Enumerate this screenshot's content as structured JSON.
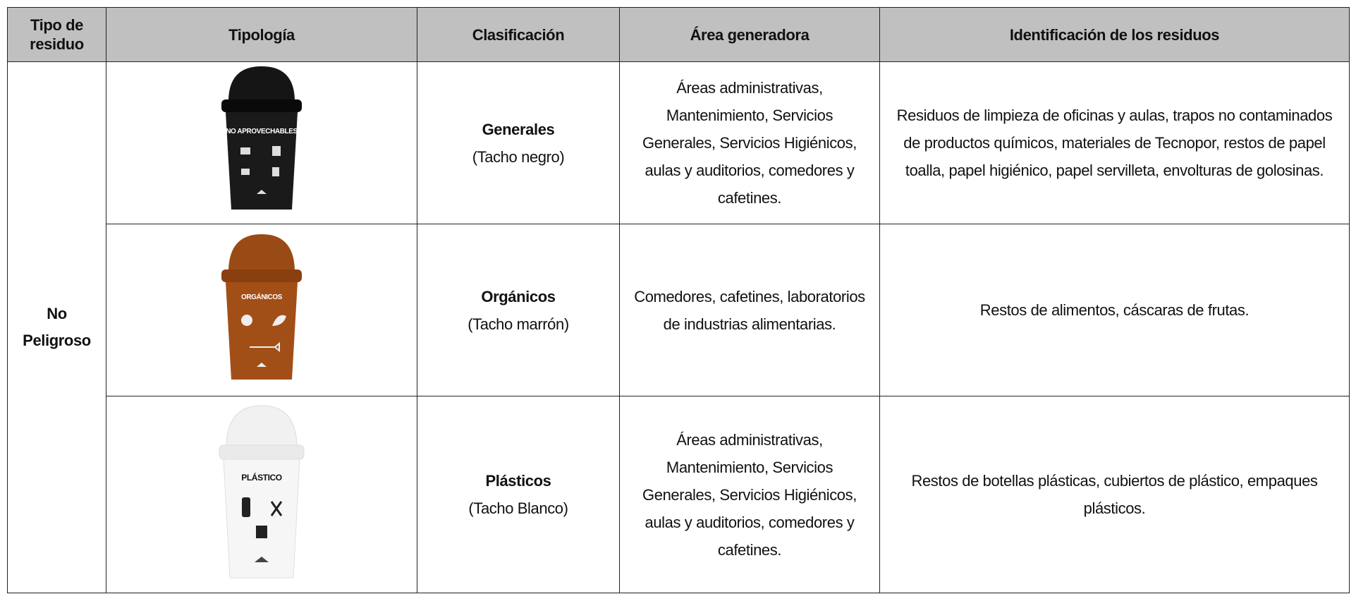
{
  "table": {
    "headers": [
      "Tipo de residuo",
      "Tipología",
      "Clasificación",
      "Área generadora",
      "Identificación de los residuos"
    ],
    "waste_type": "No Peligroso",
    "rows": [
      {
        "bin_label": "NO APROVECHABLES",
        "classification": "Generales",
        "bin_note": "(Tacho negro)",
        "area": "Áreas administrativas, Mantenimiento, Servicios Generales, Servicios Higiénicos, aulas y auditorios, comedores y cafetines.",
        "identification": "Residuos de limpieza de oficinas y aulas, trapos no contaminados de productos químicos, materiales de Tecnopor, restos de papel toalla, papel higiénico, papel servilleta, envolturas de golosinas."
      },
      {
        "bin_label": "ORGÁNICOS",
        "classification": "Orgánicos",
        "bin_note": "(Tacho marrón)",
        "area": "Comedores, cafetines, laboratorios de industrias alimentarias.",
        "identification": "Restos de alimentos, cáscaras de frutas."
      },
      {
        "bin_label": "PLÁSTICO",
        "classification": "Plásticos",
        "bin_note": "(Tacho Blanco)",
        "area": "Áreas administrativas, Mantenimiento, Servicios Generales, Servicios Higiénicos, aulas y auditorios, comedores y cafetines.",
        "identification": "Restos de botellas plásticas, cubiertos de plástico, empaques plásticos."
      }
    ]
  }
}
